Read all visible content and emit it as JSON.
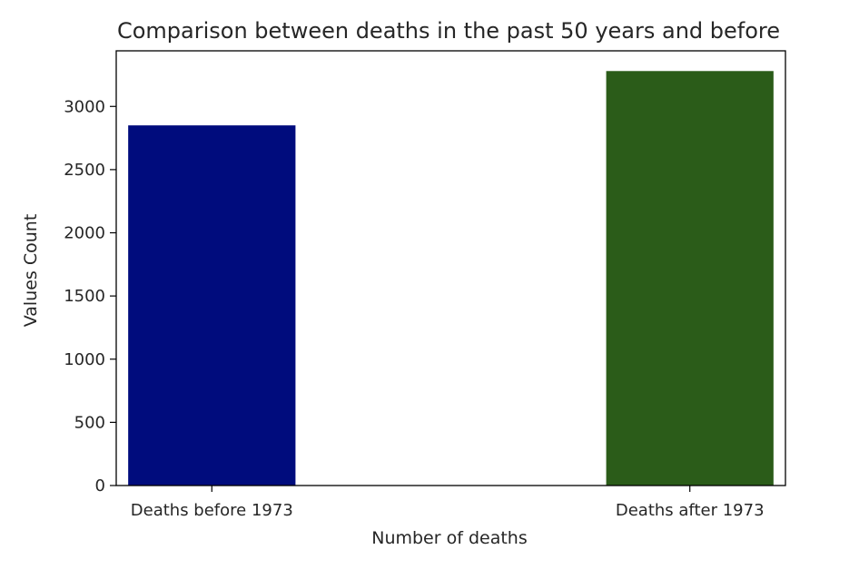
{
  "chart_data": {
    "type": "bar",
    "title": "Comparison between deaths in the past 50 years and before",
    "xlabel": "Number of deaths",
    "ylabel": "Values Count",
    "categories": [
      "Deaths before 1973",
      "Deaths after 1973"
    ],
    "values": [
      2850,
      3280
    ],
    "colors": [
      "#000c7d",
      "#2b5c19"
    ],
    "ylim": [
      0,
      3440
    ],
    "yticks": [
      0,
      500,
      1000,
      1500,
      2000,
      2500,
      3000
    ],
    "grid": false,
    "legend": "none"
  }
}
